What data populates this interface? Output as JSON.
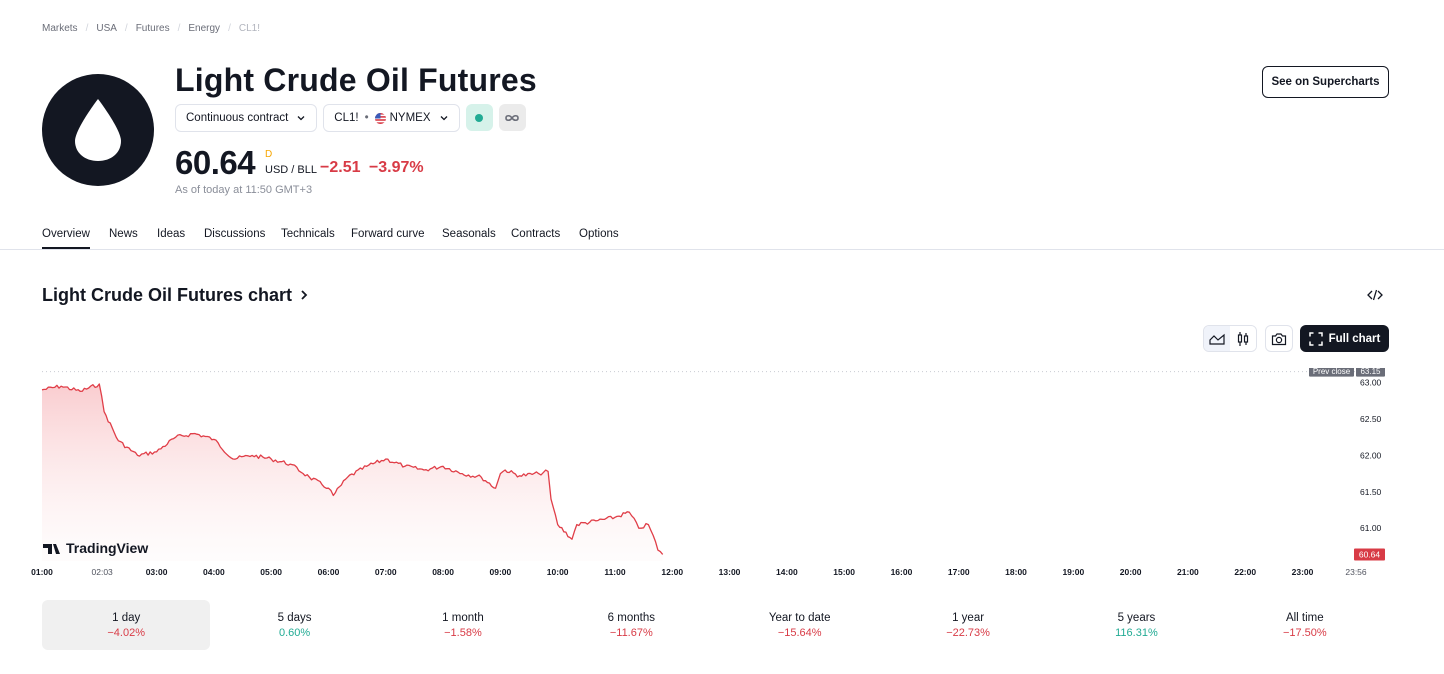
{
  "breadcrumb": [
    "Markets",
    "USA",
    "Futures",
    "Energy",
    "CL1!"
  ],
  "title": "Light Crude Oil Futures",
  "contract_select": "Continuous contract",
  "symbol": "CL1!",
  "exchange": "NYMEX",
  "price": {
    "value": "60.64",
    "suffix": "D",
    "currency": "USD / BLL",
    "change": "−2.51",
    "change_pct": "−3.97%",
    "as_of": "As of today at 11:50 GMT+3"
  },
  "supercharts_button": "See on Supercharts",
  "tabs": [
    "Overview",
    "News",
    "Ideas",
    "Discussions",
    "Technicals",
    "Forward curve",
    "Seasonals",
    "Contracts",
    "Options"
  ],
  "chart_heading": "Light Crude Oil Futures chart",
  "full_chart_button": "Full chart",
  "watermark": "TradingView",
  "colors": {
    "negative": "#d83b46",
    "positive": "#22ab94",
    "line": "#e03e48",
    "dark": "#131722"
  },
  "chart_data": {
    "type": "area",
    "x_ticks": [
      "01:00",
      "02:03",
      "03:00",
      "04:00",
      "05:00",
      "06:00",
      "07:00",
      "08:00",
      "09:00",
      "10:00",
      "11:00",
      "12:00",
      "13:00",
      "14:00",
      "15:00",
      "16:00",
      "17:00",
      "18:00",
      "19:00",
      "20:00",
      "21:00",
      "22:00",
      "23:00",
      "23:56"
    ],
    "y_ticks": [
      "63.00",
      "62.50",
      "62.00",
      "61.50",
      "61.00"
    ],
    "ylim": [
      60.55,
      63.2
    ],
    "prev_close": {
      "label": "Prev close",
      "value": "63.15"
    },
    "last_value": "60.64",
    "series": [
      {
        "x": [
          "01:00",
          "01:20",
          "01:40",
          "02:00",
          "02:05",
          "02:20",
          "02:40",
          "03:00",
          "03:20",
          "03:40",
          "04:00",
          "04:20",
          "04:40",
          "05:00",
          "05:20",
          "05:40",
          "06:00",
          "06:05",
          "06:20",
          "06:40",
          "07:00",
          "07:20",
          "07:40",
          "08:00",
          "08:20",
          "08:40",
          "08:55",
          "09:00",
          "09:05",
          "09:20",
          "09:40",
          "09:50",
          "09:53",
          "10:00",
          "10:15",
          "10:20",
          "10:40",
          "11:00",
          "11:15",
          "11:25",
          "11:35",
          "11:40",
          "11:45",
          "11:50"
        ],
        "values": [
          62.9,
          62.95,
          62.88,
          62.98,
          62.6,
          62.2,
          62.0,
          62.05,
          62.25,
          62.3,
          62.22,
          61.95,
          62.0,
          61.95,
          61.88,
          61.7,
          61.55,
          61.45,
          61.7,
          61.85,
          61.95,
          61.85,
          61.8,
          61.85,
          61.75,
          61.7,
          61.55,
          61.75,
          61.8,
          61.72,
          61.75,
          61.78,
          61.4,
          61.05,
          60.85,
          61.05,
          61.1,
          61.15,
          61.22,
          61.0,
          61.05,
          60.9,
          60.7,
          60.64
        ]
      }
    ]
  },
  "periods": [
    {
      "label": "1 day",
      "value": "−4.02%",
      "sign": "neg"
    },
    {
      "label": "5 days",
      "value": "0.60%",
      "sign": "pos"
    },
    {
      "label": "1 month",
      "value": "−1.58%",
      "sign": "neg"
    },
    {
      "label": "6 months",
      "value": "−11.67%",
      "sign": "neg"
    },
    {
      "label": "Year to date",
      "value": "−15.64%",
      "sign": "neg"
    },
    {
      "label": "1 year",
      "value": "−22.73%",
      "sign": "neg"
    },
    {
      "label": "5 years",
      "value": "116.31%",
      "sign": "pos"
    },
    {
      "label": "All time",
      "value": "−17.50%",
      "sign": "neg"
    }
  ]
}
